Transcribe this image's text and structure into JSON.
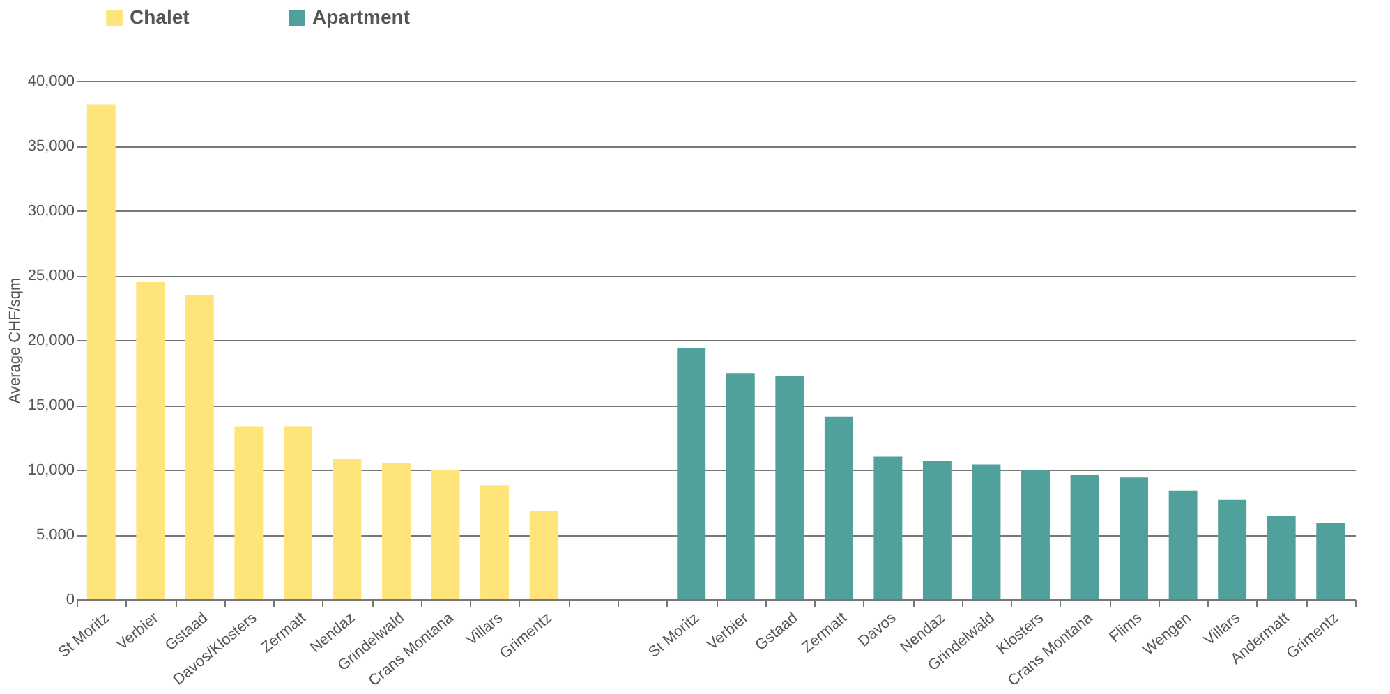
{
  "chart_data": {
    "type": "bar",
    "ylabel": "Average CHF/sqm",
    "categories": [
      "St Moritz",
      "Verbier",
      "Gstaad",
      "Davos/Klosters",
      "Zermatt",
      "Nendaz",
      "Grindelwald",
      "Crans Montana",
      "Villars",
      "Grimentz",
      null,
      null,
      "St Moritz",
      "Verbier",
      "Gstaad",
      "Zermatt",
      "Davos",
      "Nendaz",
      "Grindelwald",
      "Klosters",
      "Crans Montana",
      "Flims",
      "Wengen",
      "Villars",
      "Andermatt",
      "Grimentz"
    ],
    "series": [
      {
        "name": "Chalet",
        "color": "#ffe47a",
        "values": [
          38200,
          24500,
          23500,
          13300,
          13300,
          10800,
          10500,
          10000,
          8800,
          6800,
          null,
          null,
          null,
          null,
          null,
          null,
          null,
          null,
          null,
          null,
          null,
          null,
          null,
          null,
          null,
          null
        ]
      },
      {
        "name": "Apartment",
        "color": "#50a09b",
        "values": [
          null,
          null,
          null,
          null,
          null,
          null,
          null,
          null,
          null,
          null,
          null,
          null,
          19400,
          17400,
          17200,
          14100,
          11000,
          10700,
          10400,
          10000,
          9600,
          9400,
          8400,
          7700,
          6400,
          5900
        ]
      }
    ],
    "ylim": [
      0,
      40000
    ],
    "yticks": [
      0,
      {
        "value": 5000,
        "label": "5,000"
      },
      {
        "value": 10000,
        "label": "10,000"
      },
      {
        "value": 15000,
        "label": "15,000"
      },
      {
        "value": 20000,
        "label": "20,000"
      },
      {
        "value": 25000,
        "label": "25,000"
      },
      {
        "value": 30000,
        "label": "30,000"
      },
      {
        "value": 35000,
        "label": "35,000"
      },
      {
        "value": 40000,
        "label": "40,000"
      }
    ],
    "grid": "y",
    "legend": "top left"
  }
}
